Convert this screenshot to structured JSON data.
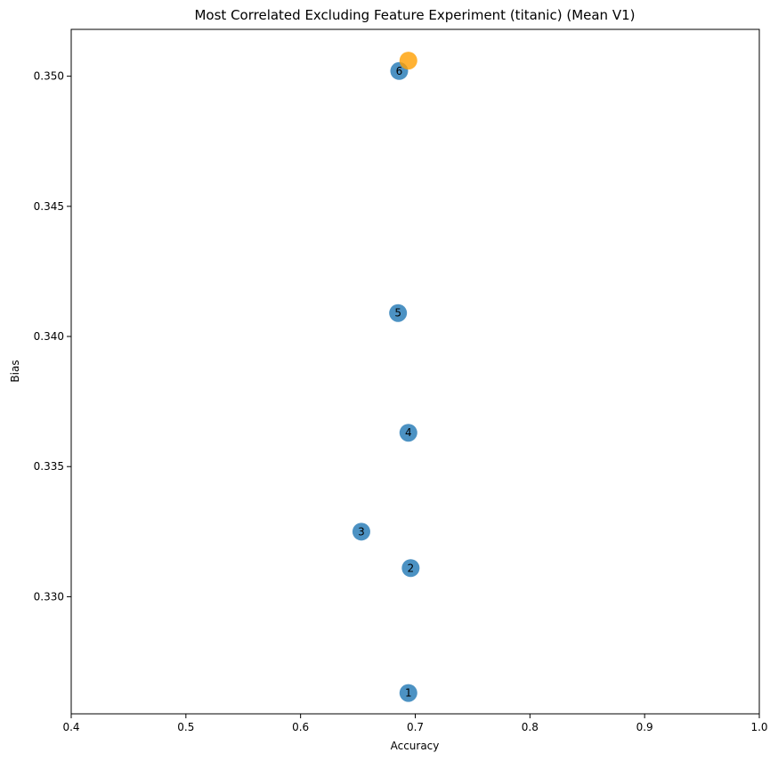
{
  "chart_data": {
    "type": "scatter",
    "title": "Most Correlated Excluding Feature Experiment (titanic) (Mean V1)",
    "xlabel": "Accuracy",
    "ylabel": "Bias",
    "xlim": [
      0.4,
      1.0
    ],
    "ylim": [
      0.3255,
      0.3518
    ],
    "grid": false,
    "x_ticks": [
      "0.4",
      "0.5",
      "0.6",
      "0.7",
      "0.8",
      "0.9",
      "1.0"
    ],
    "x_tick_values": [
      0.4,
      0.5,
      0.6,
      0.7,
      0.8,
      0.9,
      1.0
    ],
    "y_ticks": [
      "0.330",
      "0.335",
      "0.340",
      "0.345",
      "0.350"
    ],
    "y_tick_values": [
      0.33,
      0.335,
      0.34,
      0.345,
      0.35
    ],
    "series": [
      {
        "color": "#1f77b4",
        "points": [
          {
            "label": "1",
            "x": 0.694,
            "y": 0.3263
          },
          {
            "label": "2",
            "x": 0.696,
            "y": 0.3311
          },
          {
            "label": "3",
            "x": 0.653,
            "y": 0.3325
          },
          {
            "label": "4",
            "x": 0.694,
            "y": 0.3363
          },
          {
            "label": "5",
            "x": 0.685,
            "y": 0.3409
          },
          {
            "label": "6",
            "x": 0.686,
            "y": 0.3502
          }
        ]
      },
      {
        "color": "#ff9f00",
        "points": [
          {
            "label": "",
            "x": 0.694,
            "y": 0.3506
          }
        ]
      }
    ]
  }
}
